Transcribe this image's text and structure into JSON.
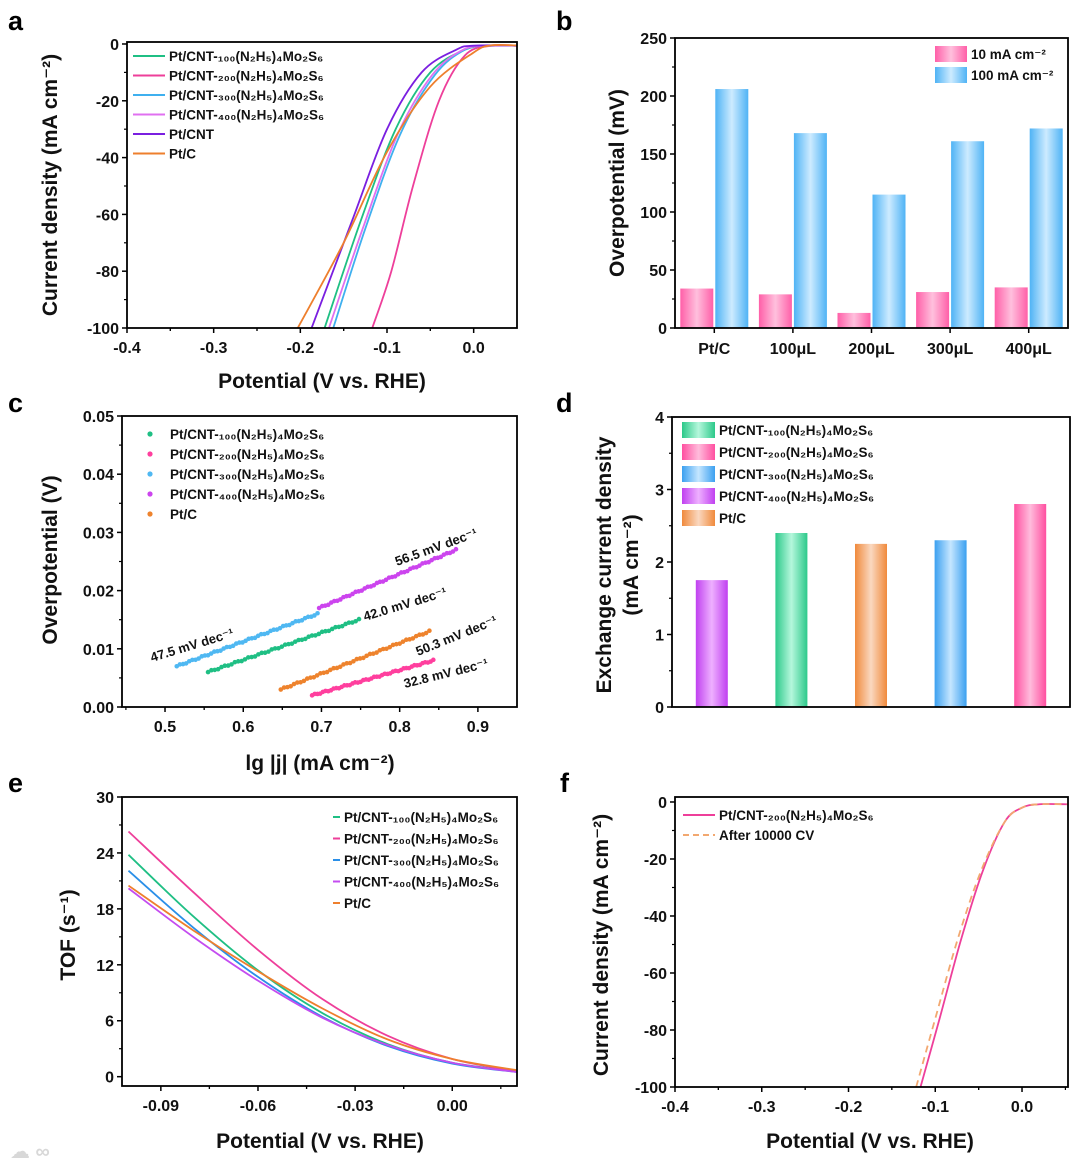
{
  "watermark": "大数跨境",
  "chart_data": [
    {
      "panel": "a",
      "type": "line",
      "xlabel": "Potential (V vs. RHE)",
      "ylabel": "Current density (mA cm⁻²)",
      "xlim": [
        -0.4,
        0.05
      ],
      "ylim": [
        -100,
        0.7
      ],
      "xticks": [
        "-0.4",
        "-0.3",
        "-0.2",
        "-0.1",
        "0.0"
      ],
      "yticks": [
        "0",
        "-20",
        "-40",
        "-60",
        "-80",
        "-100"
      ],
      "series": [
        {
          "name": "Pt/CNT-₁₀₀(N₂H₅)₄Mo₂S₆",
          "color": "#1fbf84",
          "x": [
            -0.172,
            -0.13,
            -0.09,
            -0.05,
            -0.01,
            0.02,
            0.05
          ],
          "y": [
            -100,
            -62,
            -30,
            -10,
            -2,
            -0.6,
            -0.6
          ]
        },
        {
          "name": "Pt/CNT-₂₀₀(N₂H₅)₄Mo₂S₆",
          "color": "#ee3f9a",
          "x": [
            -0.117,
            -0.095,
            -0.07,
            -0.04,
            -0.01,
            0.02,
            0.05
          ],
          "y": [
            -100,
            -80,
            -50,
            -20,
            -4,
            -0.6,
            -0.6
          ]
        },
        {
          "name": "Pt/CNT-₃₀₀(N₂H₅)₄Mo₂S₆",
          "color": "#3fb0ef",
          "x": [
            -0.162,
            -0.125,
            -0.085,
            -0.045,
            -0.01,
            0.02,
            0.05
          ],
          "y": [
            -100,
            -65,
            -32,
            -11,
            -2,
            -0.6,
            -0.6
          ]
        },
        {
          "name": "Pt/CNT-₄₀₀(N₂H₅)₄Mo₂S₆",
          "color": "#e070f0",
          "x": [
            -0.167,
            -0.128,
            -0.088,
            -0.048,
            -0.012,
            0.02,
            0.05
          ],
          "y": [
            -100,
            -65,
            -32,
            -11,
            -2,
            -0.6,
            -0.6
          ]
        },
        {
          "name": "Pt/CNT",
          "color": "#7a1fe0",
          "x": [
            -0.187,
            -0.14,
            -0.1,
            -0.06,
            -0.02,
            0.0,
            0.05
          ],
          "y": [
            -100,
            -62,
            -30,
            -10,
            -2,
            -0.6,
            -0.5
          ]
        },
        {
          "name": "Pt/C",
          "color": "#ee7f2d",
          "x": [
            -0.203,
            -0.15,
            -0.1,
            -0.05,
            0.0,
            0.02,
            0.05
          ],
          "y": [
            -100,
            -70,
            -38,
            -15,
            -3,
            -0.5,
            -0.5
          ]
        }
      ]
    },
    {
      "panel": "b",
      "type": "bar",
      "xlabel": "",
      "ylabel": "Overpotential (mV)",
      "ylim": [
        0,
        250
      ],
      "yticks": [
        "0",
        "50",
        "100",
        "150",
        "200",
        "250"
      ],
      "categories": [
        "Pt/C",
        "100μL",
        "200μL",
        "300μL",
        "400μL"
      ],
      "series": [
        {
          "name": "10 mA cm⁻²",
          "color": "#ff5fa8",
          "light": "#ffc0dd",
          "values": [
            34,
            29,
            13,
            31,
            35
          ]
        },
        {
          "name": "100 mA cm⁻²",
          "color": "#4fb3f5",
          "light": "#cdebff",
          "values": [
            206,
            168,
            115,
            161,
            172
          ]
        }
      ]
    },
    {
      "panel": "c",
      "type": "scatter",
      "xlabel": "lg |j| (mA cm⁻²)",
      "ylabel": "Overpotential (V)",
      "xlim": [
        0.445,
        0.95
      ],
      "ylim": [
        0,
        0.05
      ],
      "xticks": [
        "0.5",
        "0.6",
        "0.7",
        "0.8",
        "0.9"
      ],
      "yticks": [
        "0.00",
        "0.01",
        "0.02",
        "0.03",
        "0.04",
        "0.05"
      ],
      "series": [
        {
          "name": "Pt/CNT-₁₀₀(N₂H₅)₄Mo₂S₆",
          "color": "#1fbf84",
          "x": [
            0.555,
            0.748
          ],
          "y": [
            0.006,
            0.015
          ],
          "tafel": "42.0 mV dec⁻¹"
        },
        {
          "name": "Pt/CNT-₂₀₀(N₂H₅)₄Mo₂S₆",
          "color": "#ff3f9e",
          "x": [
            0.688,
            0.843
          ],
          "y": [
            0.002,
            0.008
          ],
          "tafel": "32.8 mV dec⁻¹"
        },
        {
          "name": "Pt/CNT-₃₀₀(N₂H₅)₄Mo₂S₆",
          "color": "#4fb8f2",
          "x": [
            0.515,
            0.695
          ],
          "y": [
            0.007,
            0.016
          ],
          "tafel": "47.5 mV dec⁻¹"
        },
        {
          "name": "Pt/CNT-₄₀₀(N₂H₅)₄Mo₂S₆",
          "color": "#cc44ee",
          "x": [
            0.697,
            0.872
          ],
          "y": [
            0.017,
            0.027
          ],
          "tafel": "56.5 mV dec⁻¹"
        },
        {
          "name": "Pt/C",
          "color": "#ee832d",
          "x": [
            0.648,
            0.838
          ],
          "y": [
            0.003,
            0.013
          ],
          "tafel": "50.3 mV dec⁻¹"
        }
      ]
    },
    {
      "panel": "d",
      "type": "bar",
      "xlabel": "",
      "ylabel": "Exchange current density",
      "ylabel2": "(mA cm⁻²)",
      "ylim": [
        0,
        4
      ],
      "yticks": [
        "0",
        "1",
        "2",
        "3",
        "4"
      ],
      "legend": [
        {
          "name": "Pt/CNT-₁₀₀(N₂H₅)₄Mo₂S₆",
          "color": "#2cc98a",
          "light": "#b5f7dc"
        },
        {
          "name": "Pt/CNT-₂₀₀(N₂H₅)₄Mo₂S₆",
          "color": "#ff4fa0",
          "light": "#ffbcdc"
        },
        {
          "name": "Pt/CNT-₃₀₀(N₂H₅)₄Mo₂S₆",
          "color": "#3ba0f0",
          "light": "#c5e6ff"
        },
        {
          "name": "Pt/CNT-₄₀₀(N₂H₅)₄Mo₂S₆",
          "color": "#c040f0",
          "light": "#eeb0ff"
        },
        {
          "name": "Pt/C",
          "color": "#f08a3c",
          "light": "#fad8c0"
        }
      ],
      "bar_order": [
        3,
        0,
        4,
        2,
        1
      ],
      "values": [
        1.75,
        2.4,
        2.25,
        2.3,
        2.8
      ]
    },
    {
      "panel": "e",
      "type": "line",
      "xlabel": "Potential (V vs. RHE)",
      "ylabel": "TOF (s⁻¹)",
      "xlim": [
        -0.102,
        0.02
      ],
      "ylim": [
        -1,
        30
      ],
      "xticks": [
        "-0.09",
        "-0.06",
        "-0.03",
        "0.00"
      ],
      "yticks": [
        "0",
        "6",
        "12",
        "18",
        "24",
        "30"
      ],
      "series": [
        {
          "name": "Pt/CNT-₁₀₀(N₂H₅)₄Mo₂S₆",
          "color": "#1fbf84",
          "x": [
            -0.1,
            -0.08,
            -0.06,
            -0.04,
            -0.02,
            0.0,
            0.02
          ],
          "y": [
            23.8,
            17.2,
            11.4,
            6.8,
            3.5,
            1.5,
            0.6
          ]
        },
        {
          "name": "Pt/CNT-₂₀₀(N₂H₅)₄Mo₂S₆",
          "color": "#ee3f9a",
          "x": [
            -0.1,
            -0.08,
            -0.06,
            -0.04,
            -0.02,
            0.0,
            0.02
          ],
          "y": [
            26.3,
            19.8,
            13.6,
            8.3,
            4.4,
            1.9,
            0.6
          ]
        },
        {
          "name": "Pt/CNT-₃₀₀(N₂H₅)₄Mo₂S₆",
          "color": "#2a8fe8",
          "x": [
            -0.1,
            -0.08,
            -0.06,
            -0.04,
            -0.02,
            0.0,
            0.02
          ],
          "y": [
            22.1,
            16.0,
            10.7,
            6.4,
            3.3,
            1.4,
            0.5
          ]
        },
        {
          "name": "Pt/CNT-₄₀₀(N₂H₅)₄Mo₂S₆",
          "color": "#c44cf0",
          "x": [
            -0.1,
            -0.08,
            -0.06,
            -0.04,
            -0.02,
            0.0,
            0.02
          ],
          "y": [
            20.2,
            15.0,
            10.3,
            6.3,
            3.4,
            1.5,
            0.5
          ]
        },
        {
          "name": "Pt/C",
          "color": "#ee7f2d",
          "x": [
            -0.1,
            -0.08,
            -0.06,
            -0.04,
            -0.02,
            0.0,
            0.02
          ],
          "y": [
            20.5,
            15.7,
            11.3,
            7.3,
            4.0,
            1.9,
            0.7
          ]
        }
      ]
    },
    {
      "panel": "f",
      "type": "line",
      "xlabel": "Potential (V vs. RHE)",
      "ylabel": "Current density (mA cm⁻²)",
      "xlim": [
        -0.4,
        0.053
      ],
      "ylim": [
        -100,
        1.75
      ],
      "xticks": [
        "-0.4",
        "-0.3",
        "-0.2",
        "-0.1",
        "0.0"
      ],
      "yticks": [
        "0",
        "-20",
        "-40",
        "-60",
        "-80",
        "-100"
      ],
      "series": [
        {
          "name": "Pt/CNT-₂₀₀(N₂H₅)₄Mo₂S₆",
          "color": "#ee3f9a",
          "dash": false,
          "x": [
            -0.117,
            -0.095,
            -0.07,
            -0.045,
            -0.02,
            0.0,
            0.02,
            0.053
          ],
          "y": [
            -100,
            -76,
            -48,
            -24,
            -7,
            -2,
            -0.8,
            -0.8
          ]
        },
        {
          "name": "After 10000 CV",
          "color": "#f2a870",
          "dash": true,
          "x": [
            -0.122,
            -0.1,
            -0.074,
            -0.047,
            -0.02,
            0.0,
            0.02,
            0.053
          ],
          "y": [
            -100,
            -76,
            -48,
            -24,
            -7,
            -2,
            -0.8,
            -0.8
          ]
        }
      ]
    }
  ]
}
